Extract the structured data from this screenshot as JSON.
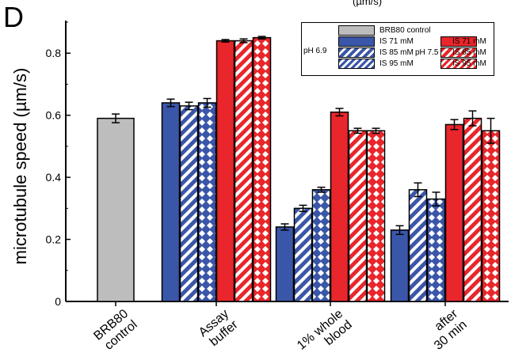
{
  "panel_letter": "D",
  "top_label": "(µm/s)",
  "colors": {
    "control": "#bdbdbd",
    "blue": "#3a56a8",
    "red": "#e8262b",
    "axis": "#000000"
  },
  "chart_data": {
    "type": "bar",
    "title": "",
    "xlabel": "",
    "ylabel": "microtubule speed (µm/s)",
    "ylim": [
      0,
      0.9
    ],
    "yticks": [
      "0",
      "0.2",
      "0.4",
      "0.6",
      "0.8"
    ],
    "grid": false,
    "legend_placement": "top-right",
    "categories": [
      "BRB80\ncontrol",
      "Assay\nbuffer",
      "1% whole\nblood",
      "after\n30 min"
    ],
    "control": {
      "name": "BRB80 control",
      "value": 0.59,
      "error": 0.014
    },
    "series": [
      {
        "name": "pH 6.9 IS 71 mM",
        "color": "blue",
        "pattern": "solid",
        "values": [
          null,
          0.64,
          0.24,
          0.23
        ],
        "errors": [
          null,
          0.012,
          0.01,
          0.014
        ]
      },
      {
        "name": "pH 6.9 IS 85 mM",
        "color": "blue",
        "pattern": "stripe",
        "values": [
          null,
          0.63,
          0.3,
          0.36
        ],
        "errors": [
          null,
          0.012,
          0.01,
          0.022
        ]
      },
      {
        "name": "pH 6.9 IS 95 mM",
        "color": "blue",
        "pattern": "diamond",
        "values": [
          null,
          0.64,
          0.36,
          0.33
        ],
        "errors": [
          null,
          0.014,
          0.008,
          0.022
        ]
      },
      {
        "name": "pH 7.5 IS 71 mM",
        "color": "red",
        "pattern": "solid",
        "values": [
          null,
          0.84,
          0.61,
          0.57
        ],
        "errors": [
          null,
          0.004,
          0.012,
          0.016
        ]
      },
      {
        "name": "pH 7.5 IS 85 mM",
        "color": "red",
        "pattern": "stripe",
        "values": [
          null,
          0.84,
          0.55,
          0.59
        ],
        "errors": [
          null,
          0.006,
          0.008,
          0.024
        ]
      },
      {
        "name": "pH 7.5 IS 95 mM",
        "color": "red",
        "pattern": "diamond",
        "values": [
          null,
          0.85,
          0.55,
          0.55
        ],
        "errors": [
          null,
          0.004,
          0.008,
          0.04
        ]
      }
    ]
  },
  "legend": {
    "control": "BRB80 control",
    "ph_left": "pH 6.9",
    "ph_right": "pH 7.5",
    "blue_items": [
      "IS 71 mM",
      "IS 85 mM",
      "IS 95 mM"
    ],
    "red_items": [
      "IS 71 mM",
      "IS 85 mM",
      "IS 95 mM"
    ]
  }
}
